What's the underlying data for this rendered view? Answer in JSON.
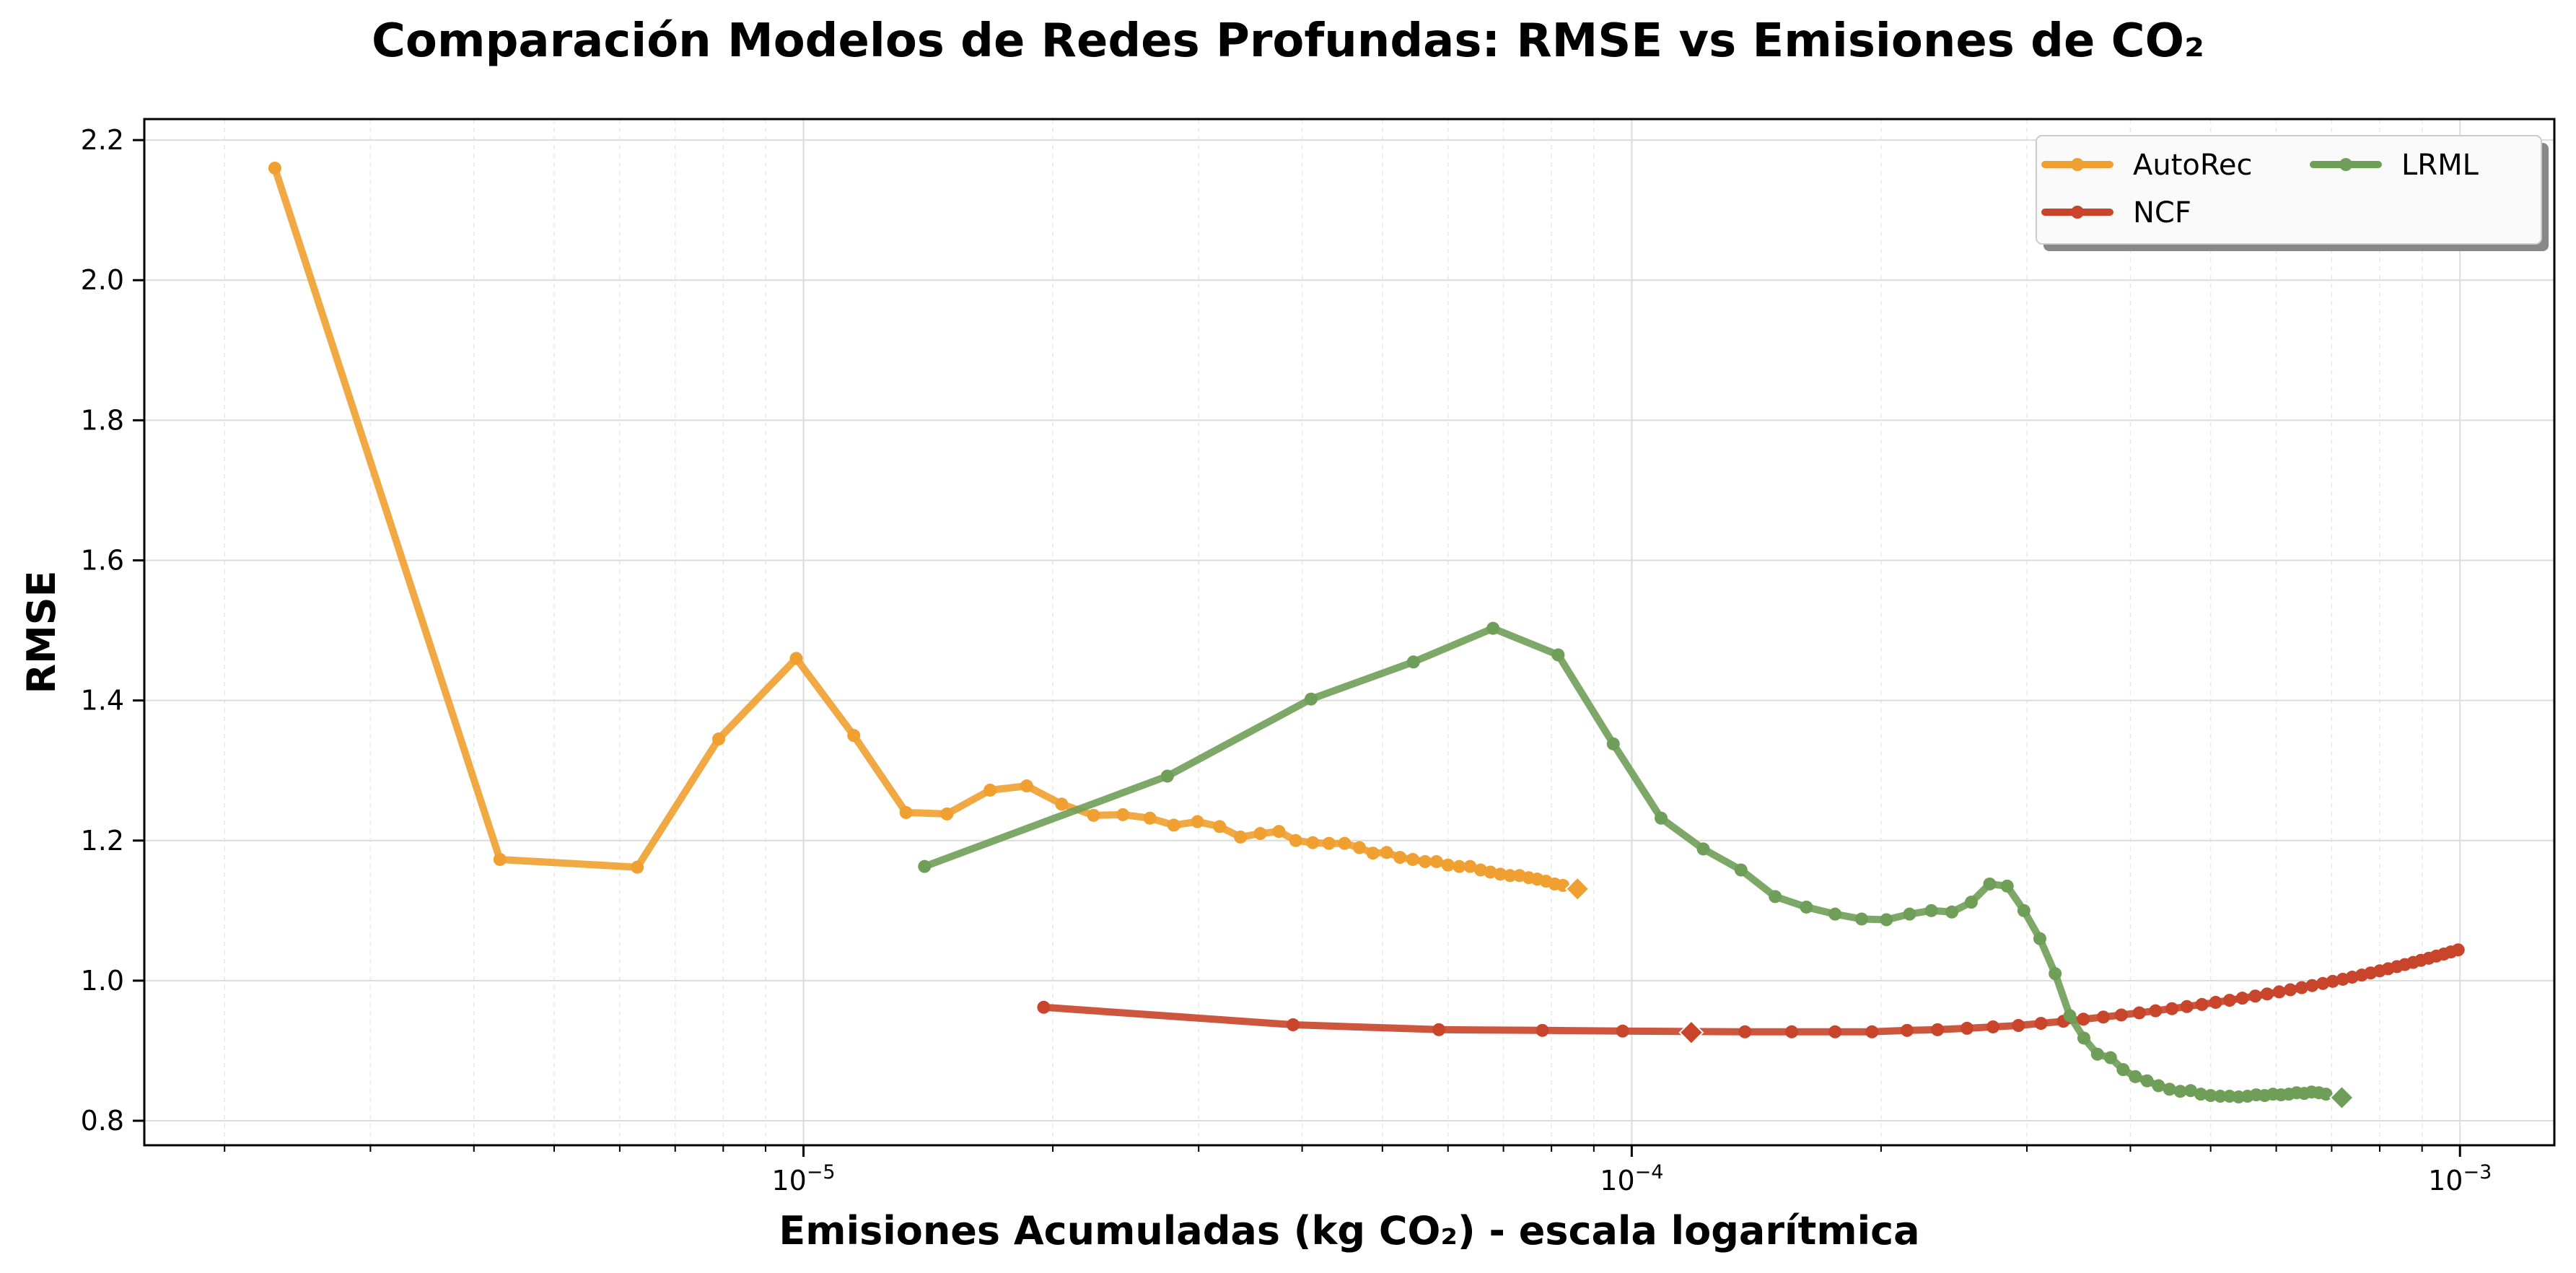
{
  "chart_data": {
    "type": "line",
    "title": "Comparación Modelos de Redes Profundas: RMSE vs Emisiones de CO₂",
    "xlabel": "Emisiones Acumuladas (kg CO₂) - escala logarítmica",
    "ylabel": "RMSE",
    "x_scale": "log",
    "xlim": [
      1.6e-06,
      0.0013
    ],
    "ylim": [
      0.765,
      2.23
    ],
    "x_ticks": [
      {
        "value": 1e-05,
        "base": "10",
        "exp": "−5"
      },
      {
        "value": 0.0001,
        "base": "10",
        "exp": "−4"
      },
      {
        "value": 0.001,
        "base": "10",
        "exp": "−3"
      }
    ],
    "y_ticks": [
      {
        "value": 0.8,
        "label": "0.8"
      },
      {
        "value": 1.0,
        "label": "1.0"
      },
      {
        "value": 1.2,
        "label": "1.2"
      },
      {
        "value": 1.4,
        "label": "1.4"
      },
      {
        "value": 1.6,
        "label": "1.6"
      },
      {
        "value": 1.8,
        "label": "1.8"
      },
      {
        "value": 2.0,
        "label": "2.0"
      },
      {
        "value": 2.2,
        "label": "2.2"
      }
    ],
    "grid": true,
    "legend_position": "top-right",
    "series": [
      {
        "name": "AutoRec",
        "color": "#f0a030",
        "final_marker": {
          "x": 8.6e-05,
          "y": 1.131
        },
        "x": [
          2.3e-06,
          4.3e-06,
          6.3e-06,
          7.9e-06,
          9.8e-06,
          1.15e-05,
          1.33e-05,
          1.49e-05,
          1.68e-05,
          1.86e-05,
          2.05e-05,
          2.24e-05,
          2.43e-05,
          2.62e-05,
          2.8e-05,
          2.99e-05,
          3.18e-05,
          3.37e-05,
          3.56e-05,
          3.75e-05,
          3.93e-05,
          4.12e-05,
          4.31e-05,
          4.5e-05,
          4.69e-05,
          4.87e-05,
          5.06e-05,
          5.25e-05,
          5.44e-05,
          5.63e-05,
          5.81e-05,
          6e-05,
          6.19e-05,
          6.38e-05,
          6.57e-05,
          6.75e-05,
          6.94e-05,
          7.13e-05,
          7.32e-05,
          7.51e-05,
          7.69e-05,
          7.88e-05,
          8.07e-05,
          8.26e-05
        ],
        "y": [
          2.16,
          1.173,
          1.162,
          1.345,
          1.46,
          1.35,
          1.24,
          1.238,
          1.272,
          1.278,
          1.252,
          1.236,
          1.237,
          1.232,
          1.222,
          1.227,
          1.22,
          1.205,
          1.21,
          1.213,
          1.2,
          1.197,
          1.196,
          1.196,
          1.19,
          1.182,
          1.183,
          1.176,
          1.173,
          1.17,
          1.17,
          1.165,
          1.163,
          1.163,
          1.158,
          1.155,
          1.152,
          1.15,
          1.15,
          1.147,
          1.145,
          1.142,
          1.138,
          1.136
        ]
      },
      {
        "name": "NCF",
        "color": "#c8442a",
        "final_marker": {
          "x": 0.000118,
          "y": 0.926
        },
        "x": [
          1.95e-05,
          3.9e-05,
          5.85e-05,
          7.8e-05,
          9.75e-05,
          0.000137,
          0.000156,
          0.000176,
          0.000195,
          0.000215,
          0.000234,
          0.000254,
          0.000273,
          0.000293,
          0.000312,
          0.000332,
          0.000351,
          0.000371,
          0.00039,
          0.00041,
          0.000429,
          0.000449,
          0.000468,
          0.000488,
          0.000507,
          0.000527,
          0.000546,
          0.000566,
          0.000585,
          0.000605,
          0.000624,
          0.000644,
          0.000663,
          0.000683,
          0.000702,
          0.000722,
          0.000741,
          0.000761,
          0.00078,
          0.0008,
          0.000819,
          0.000839,
          0.000858,
          0.000878,
          0.000897,
          0.000917,
          0.000936,
          0.000956,
          0.000975,
          0.000995
        ],
        "y": [
          0.962,
          0.937,
          0.93,
          0.929,
          0.928,
          0.927,
          0.927,
          0.927,
          0.927,
          0.929,
          0.93,
          0.932,
          0.934,
          0.936,
          0.939,
          0.942,
          0.945,
          0.948,
          0.951,
          0.954,
          0.957,
          0.96,
          0.963,
          0.966,
          0.969,
          0.972,
          0.975,
          0.978,
          0.981,
          0.984,
          0.987,
          0.99,
          0.993,
          0.996,
          0.999,
          1.002,
          1.005,
          1.008,
          1.011,
          1.014,
          1.017,
          1.02,
          1.023,
          1.026,
          1.029,
          1.032,
          1.035,
          1.038,
          1.041,
          1.044
        ]
      },
      {
        "name": "LRML",
        "color": "#6f9e58",
        "final_marker": {
          "x": 0.00072,
          "y": 0.833
        },
        "x": [
          1.4e-05,
          2.75e-05,
          4.1e-05,
          5.45e-05,
          6.8e-05,
          8.15e-05,
          9.5e-05,
          0.0001085,
          0.000122,
          0.0001355,
          0.000149,
          0.0001625,
          0.000176,
          0.0001895,
          0.000203,
          0.0002165,
          0.00023,
          0.0002435,
          0.000257,
          0.0002705,
          0.000284,
          0.0002975,
          0.000311,
          0.0003245,
          0.000338,
          0.0003515,
          0.000365,
          0.0003785,
          0.000392,
          0.0004055,
          0.000419,
          0.0004325,
          0.000446,
          0.0004595,
          0.000473,
          0.0004865,
          0.0005,
          0.0005135,
          0.000527,
          0.0005405,
          0.000554,
          0.0005675,
          0.000581,
          0.0005945,
          0.000608,
          0.0006215,
          0.000635,
          0.0006485,
          0.000662,
          0.0006755,
          0.000689
        ],
        "y": [
          1.163,
          1.292,
          1.402,
          1.455,
          1.503,
          1.465,
          1.338,
          1.232,
          1.188,
          1.158,
          1.12,
          1.105,
          1.095,
          1.088,
          1.087,
          1.095,
          1.1,
          1.098,
          1.112,
          1.138,
          1.135,
          1.1,
          1.06,
          1.01,
          0.95,
          0.918,
          0.895,
          0.89,
          0.873,
          0.863,
          0.857,
          0.85,
          0.845,
          0.842,
          0.843,
          0.838,
          0.836,
          0.835,
          0.835,
          0.834,
          0.835,
          0.837,
          0.836,
          0.838,
          0.837,
          0.838,
          0.84,
          0.839,
          0.841,
          0.84,
          0.838
        ]
      }
    ]
  }
}
